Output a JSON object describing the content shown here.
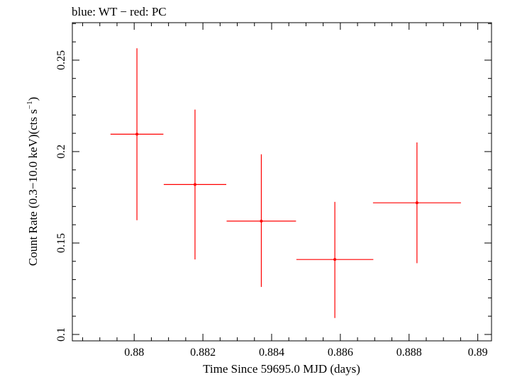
{
  "chart_data": {
    "type": "scatter",
    "title": "blue: WT − red: PC",
    "xlabel": "Time Since 59695.0 MJD (days)",
    "ylabel_main": "Count Rate (0.3−10.0 keV)(cts s",
    "ylabel_sup": "−1",
    "ylabel_end": ")",
    "xlim": [
      0.8782,
      0.8904
    ],
    "ylim": [
      0.0965,
      0.2705
    ],
    "xticks": [
      0.88,
      0.882,
      0.884,
      0.886,
      0.888,
      0.89
    ],
    "xtick_labels": [
      "0.88",
      "0.882",
      "0.884",
      "0.886",
      "0.888",
      "0.89"
    ],
    "yticks": [
      0.1,
      0.15,
      0.2,
      0.25
    ],
    "ytick_labels": [
      "0.1",
      "0.15",
      "0.2",
      "0.25"
    ],
    "grid": false,
    "series": [
      {
        "color": "#ff0000",
        "points": [
          {
            "x": 0.88008,
            "xerr_low": 0.00077,
            "xerr_high": 0.00077,
            "y": 0.2095,
            "y_low": 0.1625,
            "y_high": 0.2565
          },
          {
            "x": 0.88177,
            "xerr_low": 0.00091,
            "xerr_high": 0.00091,
            "y": 0.182,
            "y_low": 0.141,
            "y_high": 0.223
          },
          {
            "x": 0.8837,
            "xerr_low": 0.00101,
            "xerr_high": 0.00101,
            "y": 0.162,
            "y_low": 0.126,
            "y_high": 0.1985
          },
          {
            "x": 0.88584,
            "xerr_low": 0.00112,
            "xerr_high": 0.00112,
            "y": 0.141,
            "y_low": 0.109,
            "y_high": 0.1725
          },
          {
            "x": 0.88823,
            "xerr_low": 0.00128,
            "xerr_high": 0.00128,
            "y": 0.172,
            "y_low": 0.139,
            "y_high": 0.205
          }
        ]
      }
    ]
  }
}
